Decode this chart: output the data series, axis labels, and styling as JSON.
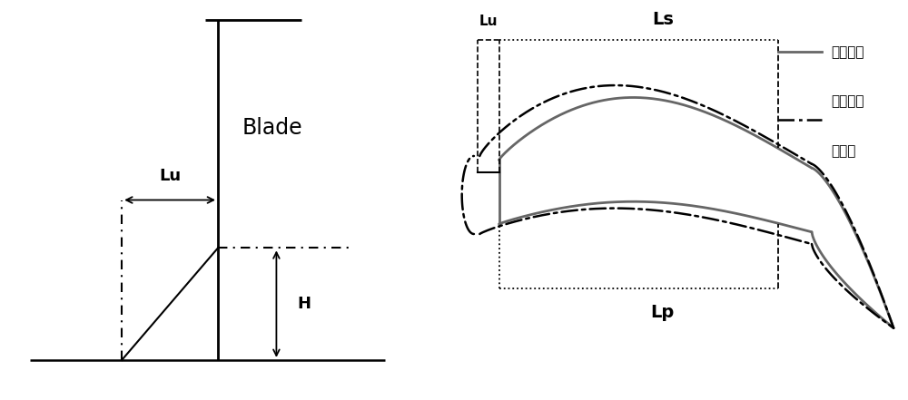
{
  "bg_color": "#ffffff",
  "line_color": "#000000",
  "gray_color": "#666666",
  "Lu_label": "Lu",
  "H_label": "H",
  "Blade_label": "Blade",
  "Ls_label": "Ls",
  "Lp_label": "Lp",
  "Lu2_label": "Lu",
  "legend_label1": "原始叶栅",
  "legend_label2": "非对称前",
  "legend_label2b": "缘修型"
}
